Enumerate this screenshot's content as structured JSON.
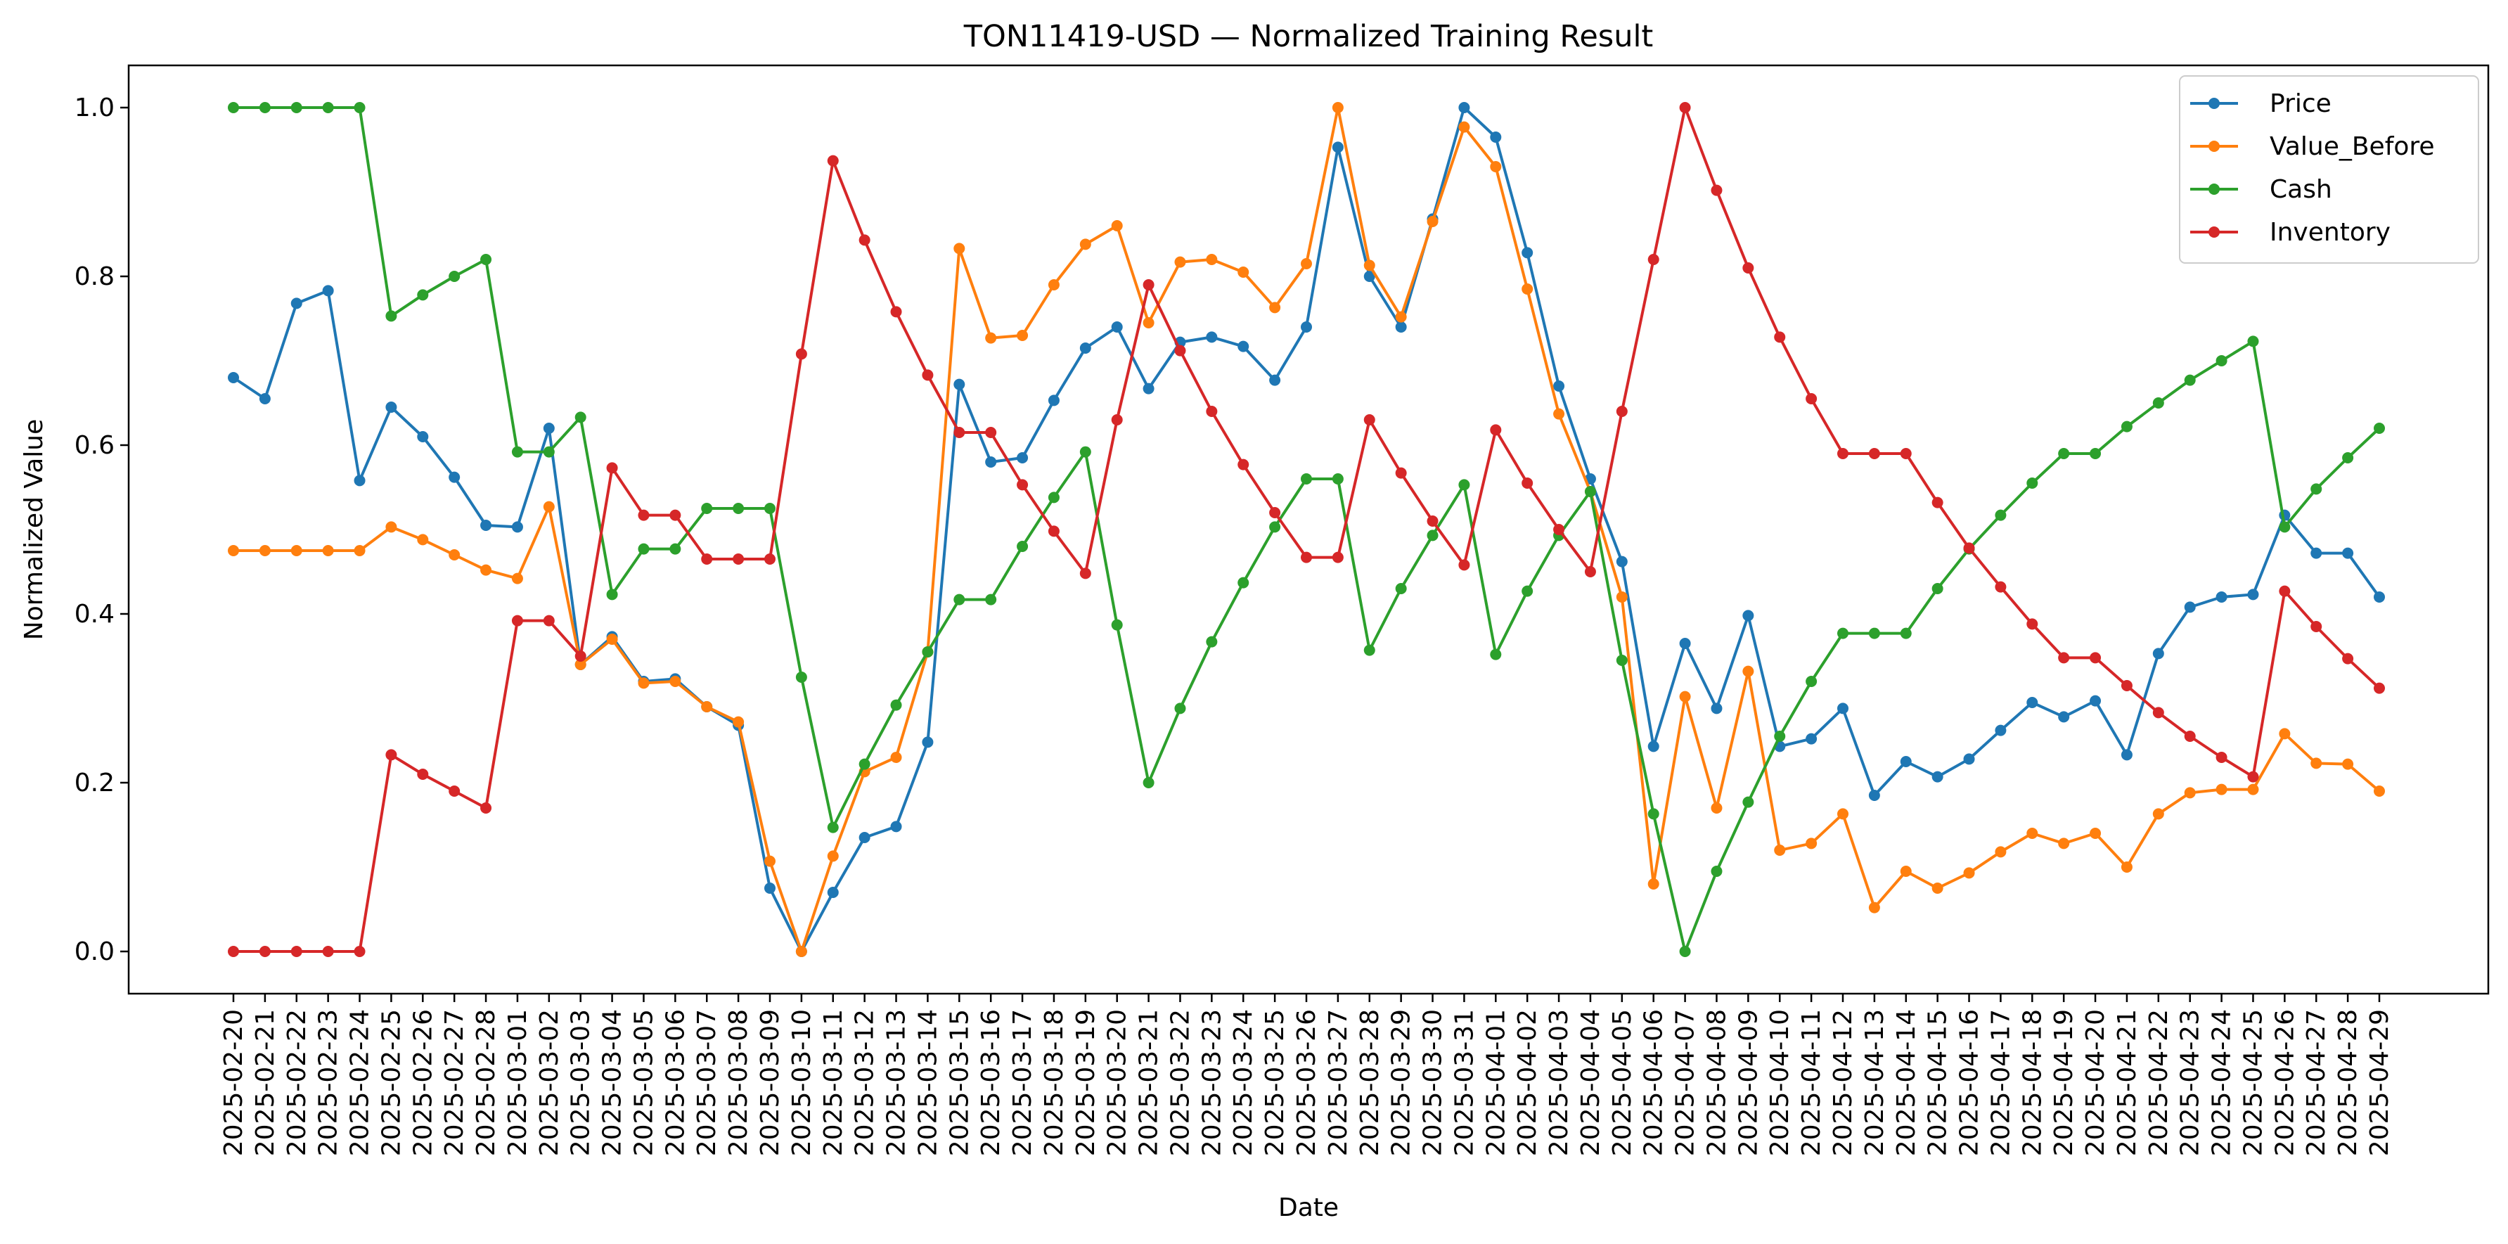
{
  "chart_data": {
    "type": "line",
    "title": "TON11419-USD — Normalized Training Result",
    "xlabel": "Date",
    "ylabel": "Normalized Value",
    "ylim": [
      -0.05,
      1.05
    ],
    "yticks": [
      "0.0",
      "0.2",
      "0.4",
      "0.6",
      "0.8",
      "1.0"
    ],
    "grid": false,
    "legend_position": "top-right",
    "x": [
      "2025-02-20",
      "2025-02-21",
      "2025-02-22",
      "2025-02-23",
      "2025-02-24",
      "2025-02-25",
      "2025-02-26",
      "2025-02-27",
      "2025-02-28",
      "2025-03-01",
      "2025-03-02",
      "2025-03-03",
      "2025-03-04",
      "2025-03-05",
      "2025-03-06",
      "2025-03-07",
      "2025-03-08",
      "2025-03-09",
      "2025-03-10",
      "2025-03-11",
      "2025-03-12",
      "2025-03-13",
      "2025-03-14",
      "2025-03-15",
      "2025-03-16",
      "2025-03-17",
      "2025-03-18",
      "2025-03-19",
      "2025-03-20",
      "2025-03-21",
      "2025-03-22",
      "2025-03-23",
      "2025-03-24",
      "2025-03-25",
      "2025-03-26",
      "2025-03-27",
      "2025-03-28",
      "2025-03-29",
      "2025-03-30",
      "2025-03-31",
      "2025-04-01",
      "2025-04-02",
      "2025-04-03",
      "2025-04-04",
      "2025-04-05",
      "2025-04-06",
      "2025-04-07",
      "2025-04-08",
      "2025-04-09",
      "2025-04-10",
      "2025-04-11",
      "2025-04-12",
      "2025-04-13",
      "2025-04-14",
      "2025-04-15",
      "2025-04-16",
      "2025-04-17",
      "2025-04-18",
      "2025-04-19",
      "2025-04-20",
      "2025-04-21",
      "2025-04-22",
      "2025-04-23",
      "2025-04-24",
      "2025-04-25",
      "2025-04-26",
      "2025-04-27",
      "2025-04-28",
      "2025-04-29"
    ],
    "series": [
      {
        "name": "Price",
        "color": "#1f77b4",
        "values": [
          0.68,
          0.655,
          0.768,
          0.783,
          0.558,
          0.645,
          0.61,
          0.562,
          0.505,
          0.503,
          0.62,
          0.34,
          0.373,
          0.32,
          0.323,
          0.29,
          0.268,
          0.075,
          0.0,
          0.07,
          0.135,
          0.148,
          0.248,
          0.672,
          0.58,
          0.585,
          0.653,
          0.715,
          0.74,
          0.667,
          0.722,
          0.728,
          0.717,
          0.677,
          0.74,
          0.953,
          0.8,
          0.74,
          0.868,
          1.0,
          0.965,
          0.828,
          0.67,
          0.56,
          0.462,
          0.243,
          0.365,
          0.288,
          0.398,
          0.243,
          0.252,
          0.288,
          0.185,
          0.225,
          0.207,
          0.228,
          0.262,
          0.295,
          0.278,
          0.297,
          0.233,
          0.353,
          0.408,
          0.42,
          0.423,
          0.517,
          0.472,
          0.472,
          0.42
        ]
      },
      {
        "name": "Value_Before",
        "color": "#ff7f0e",
        "values": [
          0.475,
          0.475,
          0.475,
          0.475,
          0.475,
          0.503,
          0.488,
          0.47,
          0.452,
          0.442,
          0.527,
          0.34,
          0.37,
          0.318,
          0.32,
          0.29,
          0.272,
          0.107,
          0.0,
          0.113,
          0.213,
          0.23,
          0.355,
          0.833,
          0.727,
          0.73,
          0.79,
          0.838,
          0.86,
          0.745,
          0.817,
          0.82,
          0.805,
          0.763,
          0.815,
          1.0,
          0.813,
          0.752,
          0.865,
          0.977,
          0.93,
          0.785,
          0.637,
          0.545,
          0.42,
          0.08,
          0.302,
          0.17,
          0.332,
          0.12,
          0.128,
          0.163,
          0.052,
          0.095,
          0.075,
          0.093,
          0.118,
          0.14,
          0.128,
          0.14,
          0.1,
          0.163,
          0.188,
          0.192,
          0.192,
          0.258,
          0.223,
          0.222,
          0.19
        ]
      },
      {
        "name": "Cash",
        "color": "#2ca02c",
        "values": [
          1.0,
          1.0,
          1.0,
          1.0,
          1.0,
          0.753,
          0.778,
          0.8,
          0.82,
          0.592,
          0.592,
          0.633,
          0.423,
          0.477,
          0.477,
          0.525,
          0.525,
          0.525,
          0.325,
          0.147,
          0.222,
          0.292,
          0.355,
          0.417,
          0.417,
          0.48,
          0.538,
          0.592,
          0.387,
          0.2,
          0.288,
          0.367,
          0.437,
          0.503,
          0.56,
          0.56,
          0.357,
          0.43,
          0.493,
          0.553,
          0.352,
          0.427,
          0.493,
          0.545,
          0.345,
          0.163,
          0.0,
          0.095,
          0.177,
          0.255,
          0.32,
          0.377,
          0.377,
          0.377,
          0.43,
          0.477,
          0.517,
          0.555,
          0.59,
          0.59,
          0.622,
          0.65,
          0.677,
          0.7,
          0.723,
          0.503,
          0.548,
          0.585,
          0.62
        ]
      },
      {
        "name": "Inventory",
        "color": "#d62728",
        "values": [
          0.0,
          0.0,
          0.0,
          0.0,
          0.0,
          0.233,
          0.21,
          0.19,
          0.17,
          0.392,
          0.392,
          0.35,
          0.573,
          0.517,
          0.517,
          0.465,
          0.465,
          0.465,
          0.708,
          0.937,
          0.843,
          0.758,
          0.683,
          0.615,
          0.615,
          0.553,
          0.498,
          0.448,
          0.63,
          0.79,
          0.712,
          0.64,
          0.577,
          0.52,
          0.467,
          0.467,
          0.63,
          0.567,
          0.51,
          0.458,
          0.618,
          0.555,
          0.5,
          0.45,
          0.64,
          0.82,
          1.0,
          0.902,
          0.81,
          0.728,
          0.655,
          0.59,
          0.59,
          0.59,
          0.532,
          0.478,
          0.432,
          0.388,
          0.348,
          0.348,
          0.315,
          0.283,
          0.255,
          0.23,
          0.207,
          0.427,
          0.385,
          0.347,
          0.312
        ]
      }
    ]
  }
}
